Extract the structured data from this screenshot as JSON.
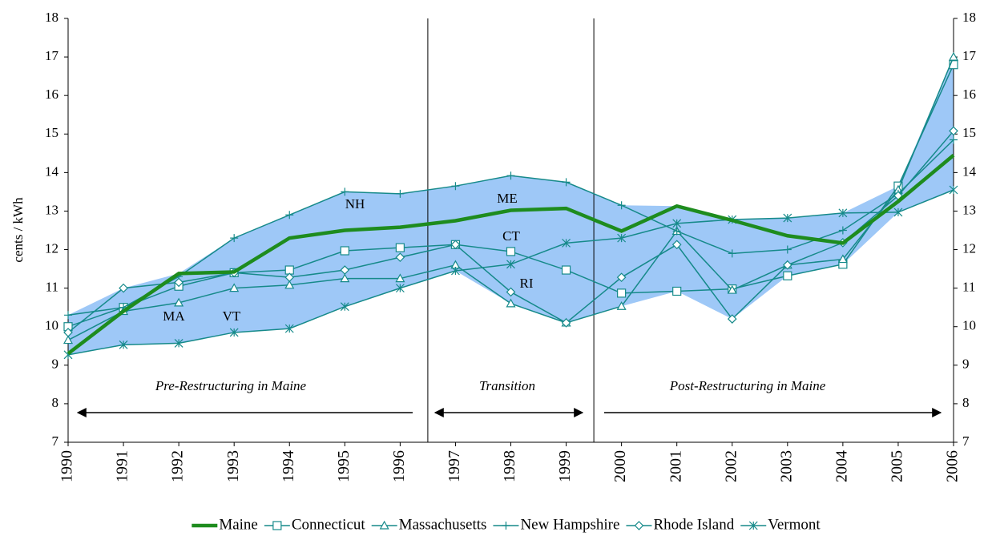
{
  "chart_data": {
    "type": "line",
    "y_label": "cents / kWh",
    "x": [
      1990,
      1991,
      1992,
      1993,
      1994,
      1995,
      1996,
      1997,
      1998,
      1999,
      2000,
      2001,
      2002,
      2003,
      2004,
      2005,
      2006
    ],
    "xlim": [
      1990,
      2006
    ],
    "ylim": [
      7,
      18
    ],
    "yticks": [
      7,
      8,
      9,
      10,
      11,
      12,
      13,
      14,
      15,
      16,
      17,
      18
    ],
    "y2lim": [
      7,
      18
    ],
    "y2ticks": [
      7,
      8,
      9,
      10,
      11,
      12,
      13,
      14,
      15,
      16,
      17,
      18
    ],
    "band_color": "#9ec8f7",
    "series": [
      {
        "name": "Maine",
        "color": "#1e8c1e",
        "marker": "none",
        "values": [
          9.3,
          10.4,
          11.38,
          11.42,
          12.3,
          12.5,
          12.58,
          12.75,
          13.02,
          13.07,
          12.48,
          13.13,
          12.76,
          12.36,
          12.17,
          13.25,
          14.45
        ]
      },
      {
        "name": "Connecticut",
        "color": "#168a8a",
        "marker": "square",
        "values": [
          10.0,
          10.5,
          11.05,
          11.4,
          11.47,
          11.97,
          12.05,
          12.13,
          11.95,
          11.47,
          10.87,
          10.92,
          10.98,
          11.32,
          11.62,
          13.65,
          16.8
        ]
      },
      {
        "name": "Massachusetts",
        "color": "#168a8a",
        "marker": "triangle",
        "values": [
          9.65,
          10.4,
          10.62,
          11.0,
          11.08,
          11.25,
          11.25,
          11.6,
          10.6,
          10.1,
          10.53,
          12.48,
          10.95,
          11.6,
          11.75,
          13.55,
          17.0
        ]
      },
      {
        "name": "New Hampshire",
        "color": "#168a8a",
        "marker": "plus",
        "values": [
          10.3,
          10.5,
          11.3,
          12.3,
          12.9,
          13.5,
          13.45,
          13.65,
          13.92,
          13.75,
          13.15,
          12.48,
          11.9,
          12.0,
          12.5,
          13.45,
          14.85
        ]
      },
      {
        "name": "Rhode Island",
        "color": "#168a8a",
        "marker": "diamond",
        "values": [
          9.85,
          11.0,
          11.15,
          11.4,
          11.28,
          11.47,
          11.8,
          12.13,
          10.9,
          10.1,
          11.28,
          12.13,
          10.2,
          11.6,
          12.18,
          13.4,
          15.08
        ]
      },
      {
        "name": "Vermont",
        "color": "#168a8a",
        "marker": "asterisk",
        "values": [
          9.27,
          9.53,
          9.57,
          9.85,
          9.95,
          10.52,
          11.0,
          11.45,
          11.62,
          12.17,
          12.3,
          12.68,
          12.78,
          12.82,
          12.95,
          12.97,
          13.55
        ]
      }
    ],
    "annotations": [
      "NH",
      "ME",
      "CT",
      "RI",
      "MA",
      "VT"
    ],
    "periods": [
      "Pre-Restructuring in Maine",
      "Transition",
      "Post-Restructuring in Maine"
    ]
  }
}
